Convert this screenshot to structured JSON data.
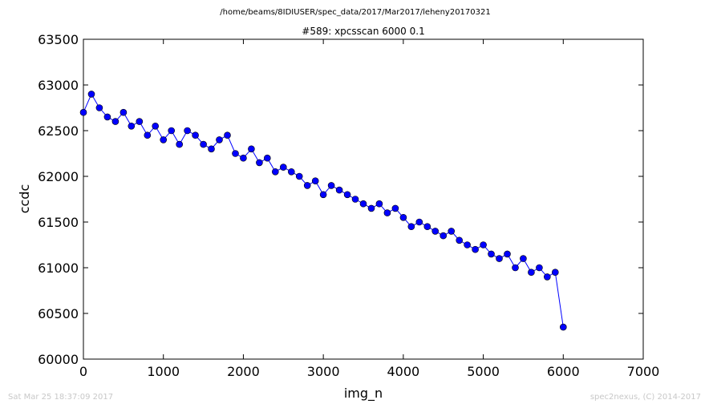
{
  "header": {
    "file_path": "/home/beams/8IDIUSER/spec_data/2017/Mar2017/leheny20170321"
  },
  "footer": {
    "timestamp": "Sat Mar 25 18:37:09 2017",
    "credit": "spec2nexus, (C) 2014-2017"
  },
  "chart_data": {
    "type": "line",
    "title": "#589: xpcsscan 6000 0.1",
    "xlabel": "img_n",
    "ylabel": "ccdc",
    "xlim": [
      0,
      7000
    ],
    "ylim": [
      60000,
      63500
    ],
    "xticks": [
      0,
      1000,
      2000,
      3000,
      4000,
      5000,
      6000,
      7000
    ],
    "yticks": [
      60000,
      60500,
      61000,
      61500,
      62000,
      62500,
      63000,
      63500
    ],
    "grid": false,
    "legend": "none",
    "series": [
      {
        "marker": "circle",
        "color": "#0000ff",
        "x": [
          0,
          100,
          200,
          300,
          400,
          500,
          600,
          700,
          800,
          900,
          1000,
          1100,
          1200,
          1300,
          1400,
          1500,
          1600,
          1700,
          1800,
          1900,
          2000,
          2100,
          2200,
          2300,
          2400,
          2500,
          2600,
          2700,
          2800,
          2900,
          3000,
          3100,
          3200,
          3300,
          3400,
          3500,
          3600,
          3700,
          3800,
          3900,
          4000,
          4100,
          4200,
          4300,
          4400,
          4500,
          4600,
          4700,
          4800,
          4900,
          5000,
          5100,
          5200,
          5300,
          5400,
          5500,
          5600,
          5700,
          5800,
          5900,
          6000
        ],
        "y": [
          62700,
          62900,
          62750,
          62650,
          62600,
          62700,
          62550,
          62600,
          62450,
          62550,
          62400,
          62500,
          62350,
          62500,
          62450,
          62350,
          62300,
          62400,
          62450,
          62250,
          62200,
          62300,
          62150,
          62200,
          62050,
          62100,
          62050,
          62000,
          61900,
          61950,
          61800,
          61900,
          61850,
          61800,
          61750,
          61700,
          61650,
          61700,
          61600,
          61650,
          61550,
          61450,
          61500,
          61450,
          61400,
          61350,
          61400,
          61300,
          61250,
          61200,
          61250,
          61150,
          61100,
          61150,
          61000,
          61100,
          60950,
          61000,
          60900,
          60950,
          60350
        ]
      }
    ]
  }
}
